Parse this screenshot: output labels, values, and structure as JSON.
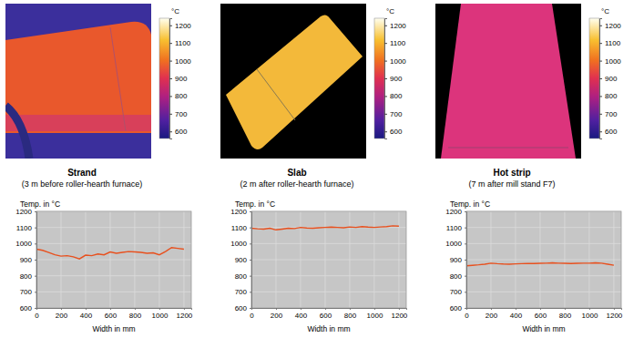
{
  "chart_data": [
    {
      "type": "line",
      "title": "Strand",
      "subtitle": "(3 m before roller-hearth furnace)",
      "xlabel": "Width in mm",
      "ylabel": "Temp. in °C",
      "color": "#e8501e",
      "grid": true,
      "x": [
        0,
        50,
        100,
        150,
        200,
        250,
        300,
        350,
        400,
        450,
        500,
        550,
        600,
        650,
        700,
        750,
        800,
        850,
        900,
        950,
        1000,
        1050,
        1100,
        1150,
        1200
      ],
      "values": [
        965,
        958,
        945,
        930,
        922,
        925,
        918,
        905,
        928,
        925,
        935,
        930,
        948,
        940,
        945,
        950,
        948,
        945,
        940,
        942,
        930,
        950,
        975,
        970,
        965
      ],
      "xlim": [
        0,
        1260
      ],
      "ylim": [
        600,
        1200
      ],
      "xticks": [
        0,
        200,
        400,
        600,
        800,
        1000,
        1200
      ],
      "yticks": [
        600,
        700,
        800,
        900,
        1000,
        1100,
        1200
      ],
      "colorbar_range": [
        560,
        1240
      ],
      "colorbar_ticks": [
        600,
        700,
        800,
        900,
        1000,
        1100,
        1200
      ],
      "colorbar_label": "°C"
    },
    {
      "type": "line",
      "title": "Slab",
      "subtitle": "(2 m after roller-hearth furnace)",
      "xlabel": "Width in mm",
      "ylabel": "Temp. in °C",
      "color": "#e8501e",
      "grid": true,
      "x": [
        0,
        50,
        100,
        150,
        200,
        250,
        300,
        350,
        400,
        450,
        500,
        550,
        600,
        650,
        700,
        750,
        800,
        850,
        900,
        950,
        1000,
        1050,
        1100,
        1150,
        1200
      ],
      "values": [
        1095,
        1092,
        1090,
        1095,
        1085,
        1090,
        1095,
        1093,
        1100,
        1097,
        1095,
        1098,
        1100,
        1102,
        1100,
        1098,
        1103,
        1100,
        1105,
        1102,
        1100,
        1103,
        1105,
        1110,
        1108
      ],
      "xlim": [
        0,
        1260
      ],
      "ylim": [
        600,
        1200
      ],
      "xticks": [
        0,
        200,
        400,
        600,
        800,
        1000,
        1200
      ],
      "yticks": [
        600,
        700,
        800,
        900,
        1000,
        1100,
        1200
      ],
      "colorbar_range": [
        560,
        1240
      ],
      "colorbar_ticks": [
        600,
        700,
        800,
        900,
        1000,
        1100,
        1200
      ],
      "colorbar_label": "°C"
    },
    {
      "type": "line",
      "title": "Hot strip",
      "subtitle": "(7 m after mill stand F7)",
      "xlabel": "Width in mm",
      "ylabel": "Temp. in °C",
      "color": "#e8501e",
      "grid": true,
      "x": [
        0,
        50,
        100,
        150,
        200,
        250,
        300,
        350,
        400,
        450,
        500,
        550,
        600,
        650,
        700,
        750,
        800,
        850,
        900,
        950,
        1000,
        1050,
        1100,
        1150,
        1200
      ],
      "values": [
        862,
        865,
        868,
        872,
        878,
        875,
        873,
        872,
        874,
        875,
        876,
        876,
        877,
        878,
        880,
        878,
        877,
        876,
        877,
        878,
        878,
        880,
        878,
        872,
        865
      ],
      "xlim": [
        0,
        1260
      ],
      "ylim": [
        600,
        1200
      ],
      "xticks": [
        0,
        200,
        400,
        600,
        800,
        1000,
        1200
      ],
      "yticks": [
        600,
        700,
        800,
        900,
        1000,
        1100,
        1200
      ],
      "colorbar_range": [
        560,
        1240
      ],
      "colorbar_ticks": [
        600,
        700,
        800,
        900,
        1000,
        1100,
        1200
      ],
      "colorbar_label": "°C"
    }
  ]
}
